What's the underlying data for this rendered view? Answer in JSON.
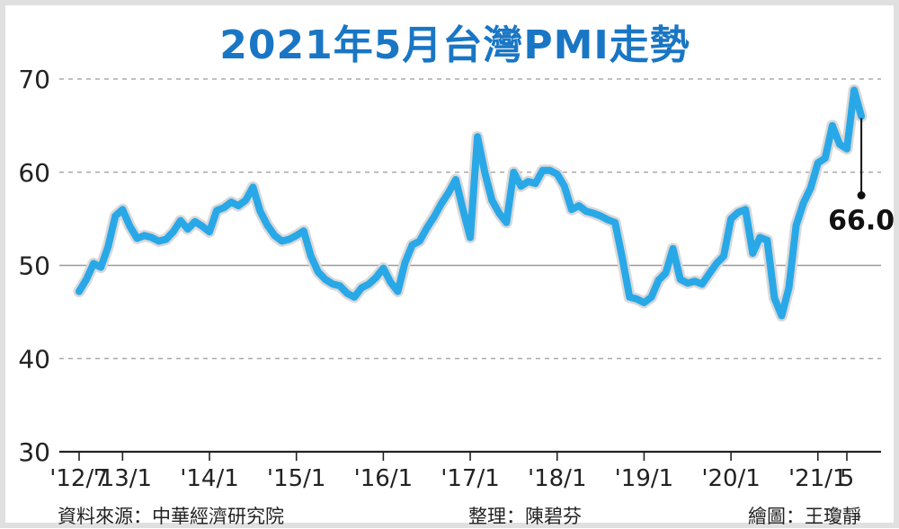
{
  "title": "2021年5月台灣PMI走勢",
  "credits": {
    "source": "資料來源：中華經濟研究院",
    "editor": "整理：陳碧芬",
    "graphic": "繪圖：王瓊靜"
  },
  "colors": {
    "title": "#1976c4",
    "line": "#29a8e8",
    "line_halo": "#d9d9d9",
    "grid": "#9a9a9a",
    "axis": "#222222"
  },
  "chart_data": {
    "type": "line",
    "title": "2021年5月台灣PMI走勢",
    "xlabel": "",
    "ylabel": "",
    "ylim": [
      30,
      70
    ],
    "yticks": [
      30,
      40,
      50,
      60,
      70
    ],
    "grid": "horizontal dashed",
    "x_start": "2012-07",
    "x_end": "2021-05",
    "xtick_labels": [
      {
        "label": "'12/7",
        "x": "2012-07"
      },
      {
        "label": "'13/1",
        "x": "2013-01"
      },
      {
        "label": "'14/1",
        "x": "2014-01"
      },
      {
        "label": "'15/1",
        "x": "2015-01"
      },
      {
        "label": "'16/1",
        "x": "2016-01"
      },
      {
        "label": "'17/1",
        "x": "2017-01"
      },
      {
        "label": "'18/1",
        "x": "2018-01"
      },
      {
        "label": "'19/1",
        "x": "2019-01"
      },
      {
        "label": "'20/1",
        "x": "2020-01"
      },
      {
        "label": "'21/1",
        "x": "2021-01"
      },
      {
        "label": "5",
        "x": "2021-05"
      }
    ],
    "series": [
      {
        "values": [
          [
            "2012-07",
            47.2
          ],
          [
            "2012-08",
            48.5
          ],
          [
            "2012-09",
            50.2
          ],
          [
            "2012-10",
            49.8
          ],
          [
            "2012-11",
            52.0
          ],
          [
            "2012-12",
            55.3
          ],
          [
            "2013-01",
            56.0
          ],
          [
            "2013-02",
            54.2
          ],
          [
            "2013-03",
            52.9
          ],
          [
            "2013-04",
            53.2
          ],
          [
            "2013-05",
            53.0
          ],
          [
            "2013-06",
            52.6
          ],
          [
            "2013-07",
            52.8
          ],
          [
            "2013-08",
            53.6
          ],
          [
            "2013-09",
            54.8
          ],
          [
            "2013-10",
            53.9
          ],
          [
            "2013-11",
            54.7
          ],
          [
            "2013-12",
            54.2
          ],
          [
            "2014-01",
            53.6
          ],
          [
            "2014-02",
            55.9
          ],
          [
            "2014-03",
            56.2
          ],
          [
            "2014-04",
            56.8
          ],
          [
            "2014-05",
            56.4
          ],
          [
            "2014-06",
            57.0
          ],
          [
            "2014-07",
            58.4
          ],
          [
            "2014-08",
            55.8
          ],
          [
            "2014-09",
            54.3
          ],
          [
            "2014-10",
            53.2
          ],
          [
            "2014-11",
            52.6
          ],
          [
            "2014-12",
            52.8
          ],
          [
            "2015-01",
            53.2
          ],
          [
            "2015-02",
            53.7
          ],
          [
            "2015-03",
            51.0
          ],
          [
            "2015-04",
            49.3
          ],
          [
            "2015-05",
            48.5
          ],
          [
            "2015-06",
            48.0
          ],
          [
            "2015-07",
            47.8
          ],
          [
            "2015-08",
            47.0
          ],
          [
            "2015-09",
            46.6
          ],
          [
            "2015-10",
            47.6
          ],
          [
            "2015-11",
            48.0
          ],
          [
            "2015-12",
            48.7
          ],
          [
            "2016-01",
            49.7
          ],
          [
            "2016-02",
            48.2
          ],
          [
            "2016-03",
            47.2
          ],
          [
            "2016-04",
            50.3
          ],
          [
            "2016-05",
            52.2
          ],
          [
            "2016-06",
            52.6
          ],
          [
            "2016-07",
            54.0
          ],
          [
            "2016-08",
            55.2
          ],
          [
            "2016-09",
            56.6
          ],
          [
            "2016-10",
            57.8
          ],
          [
            "2016-11",
            59.2
          ],
          [
            "2016-12",
            56.0
          ],
          [
            "2017-01",
            53.0
          ],
          [
            "2017-02",
            63.8
          ],
          [
            "2017-03",
            60.0
          ],
          [
            "2017-04",
            57.0
          ],
          [
            "2017-05",
            55.6
          ],
          [
            "2017-06",
            54.6
          ],
          [
            "2017-07",
            60.0
          ],
          [
            "2017-08",
            58.5
          ],
          [
            "2017-09",
            59.0
          ],
          [
            "2017-10",
            58.8
          ],
          [
            "2017-11",
            60.2
          ],
          [
            "2017-12",
            60.2
          ],
          [
            "2018-01",
            59.8
          ],
          [
            "2018-02",
            58.5
          ],
          [
            "2018-03",
            56.0
          ],
          [
            "2018-04",
            56.4
          ],
          [
            "2018-05",
            55.8
          ],
          [
            "2018-06",
            55.6
          ],
          [
            "2018-07",
            55.3
          ],
          [
            "2018-08",
            54.9
          ],
          [
            "2018-09",
            54.6
          ],
          [
            "2018-10",
            50.8
          ],
          [
            "2018-11",
            46.6
          ],
          [
            "2018-12",
            46.4
          ],
          [
            "2019-01",
            46.0
          ],
          [
            "2019-02",
            46.6
          ],
          [
            "2019-03",
            48.4
          ],
          [
            "2019-04",
            49.2
          ],
          [
            "2019-05",
            51.8
          ],
          [
            "2019-06",
            48.5
          ],
          [
            "2019-07",
            48.1
          ],
          [
            "2019-08",
            48.3
          ],
          [
            "2019-09",
            48.0
          ],
          [
            "2019-10",
            49.1
          ],
          [
            "2019-11",
            50.2
          ],
          [
            "2019-12",
            51.0
          ],
          [
            "2020-01",
            55.0
          ],
          [
            "2020-02",
            55.7
          ],
          [
            "2020-03",
            56.0
          ],
          [
            "2020-04",
            51.3
          ],
          [
            "2020-05",
            53.0
          ],
          [
            "2020-06",
            52.7
          ],
          [
            "2020-07",
            46.5
          ],
          [
            "2020-08",
            44.6
          ],
          [
            "2020-09",
            47.6
          ],
          [
            "2020-10",
            54.3
          ],
          [
            "2020-11",
            56.7
          ],
          [
            "2020-12",
            58.3
          ],
          [
            "2021-01",
            61.0
          ],
          [
            "2021-02",
            61.5
          ],
          [
            "2021-03",
            65.0
          ],
          [
            "2021-04",
            63.0
          ],
          [
            "2021-05",
            62.5
          ],
          [
            "2021-06",
            68.8
          ],
          [
            "2021-07",
            66.0
          ]
        ]
      }
    ],
    "annotations": [
      {
        "text": "66.0",
        "x": "2021-07",
        "y": 66.0
      }
    ]
  }
}
